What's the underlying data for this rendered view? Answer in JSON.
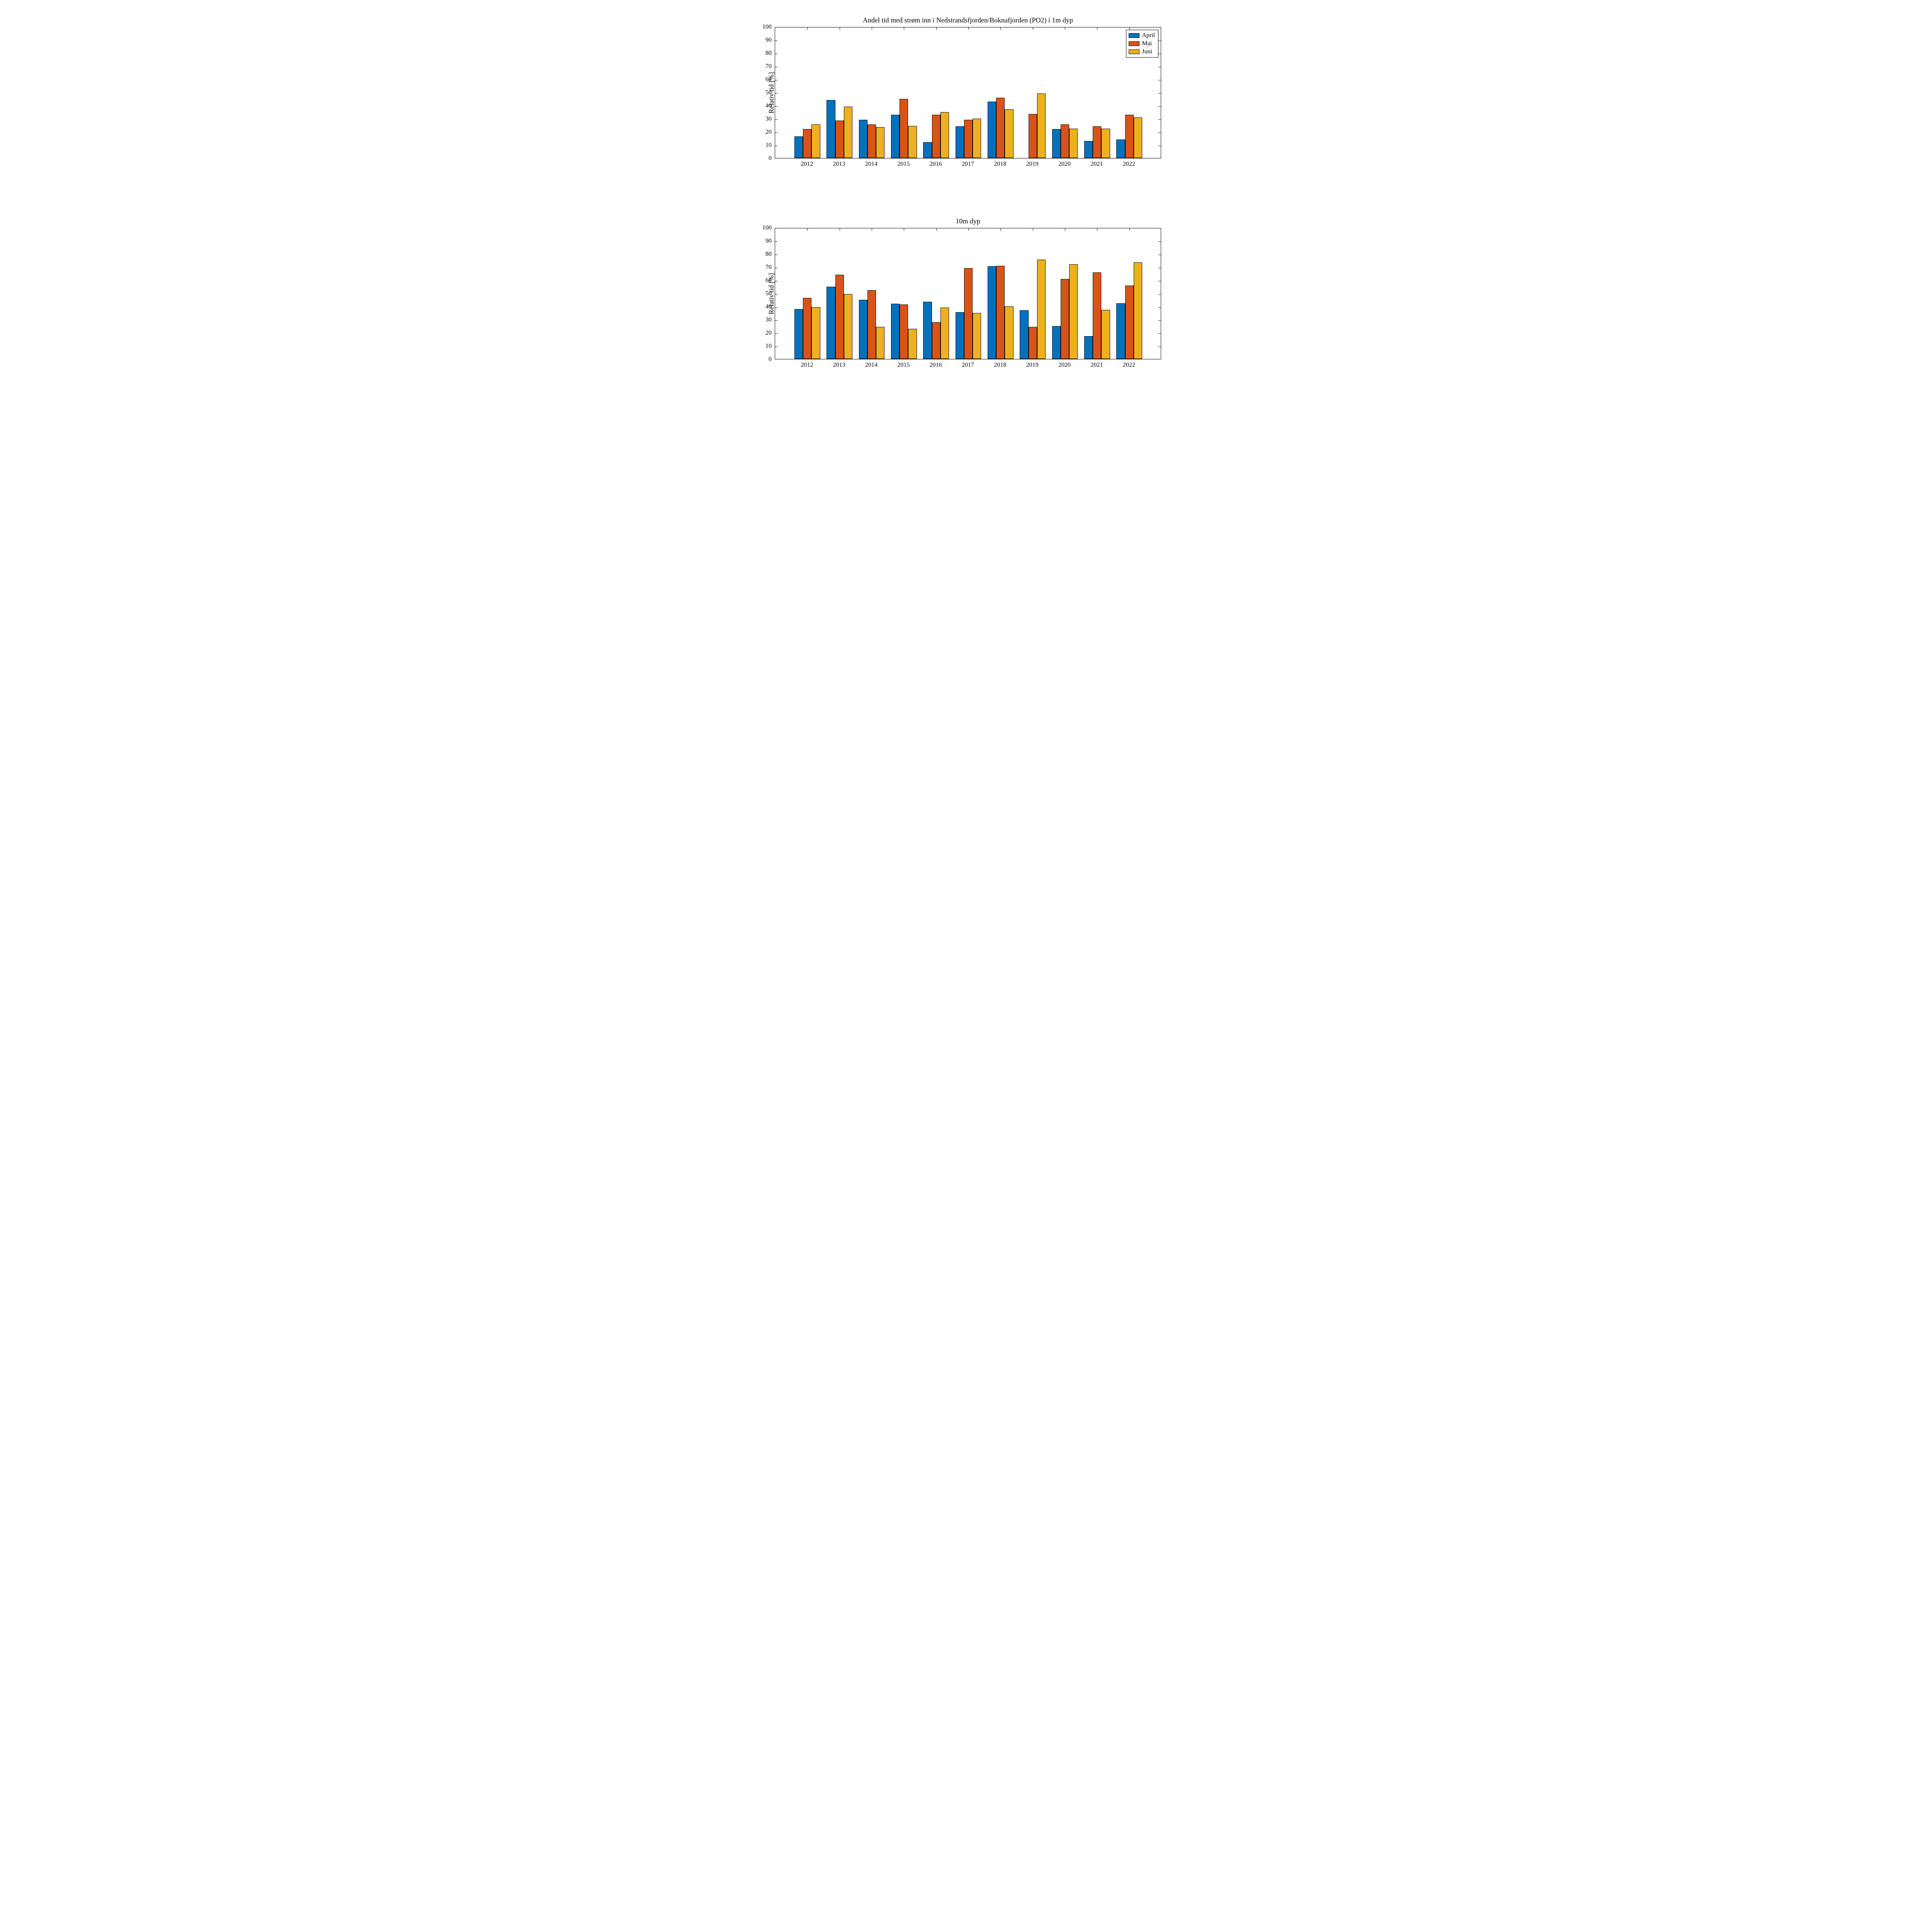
{
  "figure": {
    "background_color": "#ffffff",
    "font_family": "Times New Roman",
    "colors": {
      "april": "#0072bd",
      "mai": "#d95319",
      "juni": "#edb120",
      "axis": "#000000",
      "text": "#000000"
    },
    "legend": {
      "items": [
        {
          "key": "april",
          "label": "April"
        },
        {
          "key": "mai",
          "label": "Mai"
        },
        {
          "key": "juni",
          "label": "Juni"
        }
      ],
      "position": "top-right",
      "fontsize": 16
    },
    "yaxis": {
      "label": "Relativ tid [%]",
      "min": 0,
      "max": 100,
      "tick_step": 10,
      "label_fontsize": 18,
      "tick_fontsize": 16
    },
    "xaxis": {
      "categories": [
        "2012",
        "2013",
        "2014",
        "2015",
        "2016",
        "2017",
        "2018",
        "2019",
        "2020",
        "2021",
        "2022"
      ],
      "tick_fontsize": 16
    },
    "bar_group_width": 0.8,
    "bar_border_color": "#000000",
    "panels": [
      {
        "id": "panel-1m",
        "title": "Andel tid med strøm inn i Nedstrandsfjorden/Boknafjorden (PO2) i 1m dyp",
        "title_fontsize": 18,
        "show_legend": true,
        "series": {
          "april": [
            16.5,
            44,
            29,
            33,
            12,
            24,
            43,
            0,
            22,
            13,
            14
          ],
          "mai": [
            22,
            28.5,
            25.5,
            45,
            33,
            29,
            46,
            33.5,
            25.5,
            24,
            33
          ],
          "juni": [
            25.5,
            39,
            23.5,
            24.5,
            35,
            30,
            37,
            49,
            22.5,
            22.5,
            31
          ]
        }
      },
      {
        "id": "panel-10m",
        "title": "10m dyp",
        "title_fontsize": 18,
        "show_legend": false,
        "series": {
          "april": [
            38,
            55,
            45,
            42,
            43.5,
            35.5,
            70.5,
            37,
            25,
            17.5,
            42.5
          ],
          "mai": [
            46.5,
            64,
            52.5,
            41.5,
            28,
            69,
            71,
            24.5,
            61,
            66,
            56
          ],
          "juni": [
            39.5,
            49.5,
            24.5,
            23,
            39,
            35,
            40,
            75.5,
            72,
            37.5,
            73.5
          ]
        }
      }
    ]
  }
}
